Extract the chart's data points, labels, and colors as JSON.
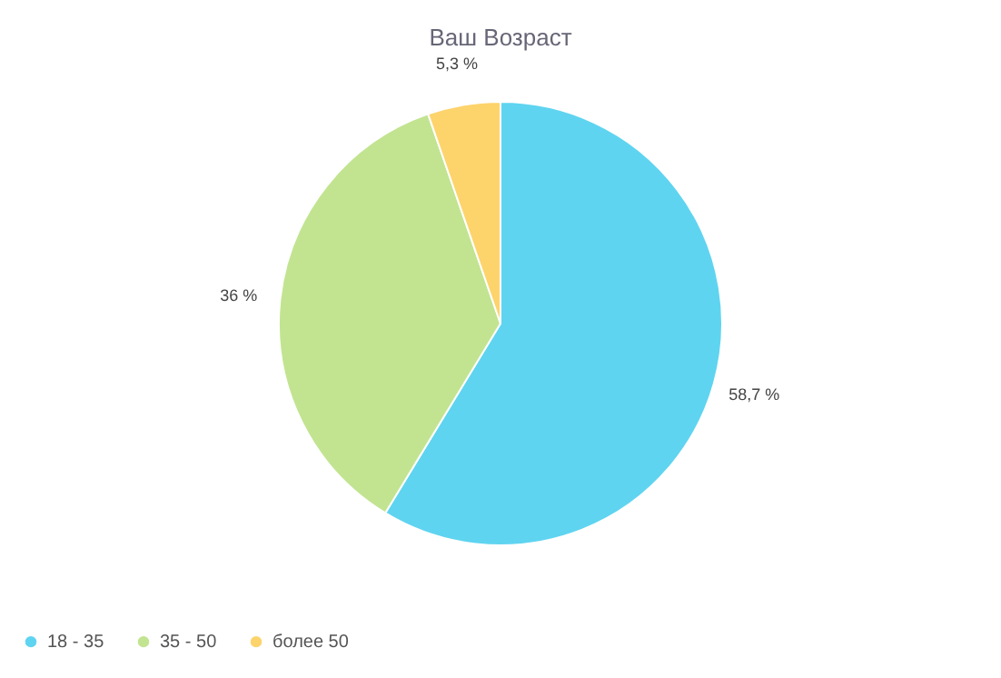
{
  "chart_data": {
    "type": "pie",
    "title": "Ваш Возраст",
    "categories": [
      "18 - 35",
      "35 - 50",
      "более 50"
    ],
    "values": [
      58.7,
      36,
      5.3
    ],
    "colors": [
      "#5fd4f0",
      "#c2e491",
      "#fdd36c"
    ],
    "value_labels": [
      "58,7 %",
      "36 %",
      "5,3 %"
    ],
    "legend": "bottom left"
  }
}
